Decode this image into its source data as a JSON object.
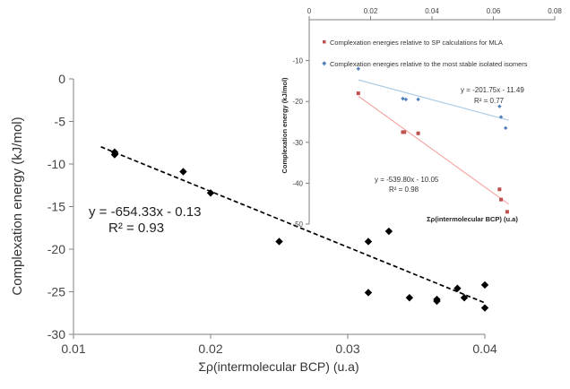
{
  "chart_data": [
    {
      "type": "scatter",
      "xlabel": "Σρ(intermolecular BCP) (u.a)",
      "ylabel": "Complexation energy (kJ/mol)",
      "xlim": [
        0.01,
        0.04
      ],
      "ylim": [
        -30,
        0
      ],
      "xticks": [
        "0.01",
        "0.02",
        "0.03",
        "0.04"
      ],
      "yticks": [
        "0",
        "-5",
        "-10",
        "-15",
        "-20",
        "-25",
        "-30"
      ],
      "grid": false,
      "series": [
        {
          "marker": "diamond",
          "color": "#000000",
          "points": [
            [
              0.013,
              -8.6
            ],
            [
              0.013,
              -8.9
            ],
            [
              0.018,
              -10.9
            ],
            [
              0.02,
              -13.4
            ],
            [
              0.025,
              -19.1
            ],
            [
              0.033,
              -17.9
            ],
            [
              0.0315,
              -19.1
            ],
            [
              0.0315,
              -25.1
            ],
            [
              0.0345,
              -25.7
            ],
            [
              0.0365,
              -25.9
            ],
            [
              0.0365,
              -26.1
            ],
            [
              0.038,
              -24.6
            ],
            [
              0.0385,
              -25.7
            ],
            [
              0.04,
              -24.2
            ],
            [
              0.04,
              -26.9
            ]
          ]
        }
      ],
      "trendline": {
        "style": "dashed",
        "color": "#000000",
        "x_range": [
          0.012,
          0.04
        ],
        "equation": "y = -654.33x - 0.13",
        "r2": "R² = 0.93",
        "slope": -654.33,
        "intercept": -0.13
      }
    },
    {
      "type": "scatter",
      "xlabel": "Σρ(intermolecular BCP) (u.a)",
      "ylabel": "Complexation energy (kJ/mol)",
      "xlim": [
        0,
        0.08
      ],
      "ylim": [
        -50,
        0
      ],
      "x_axis_position": "top",
      "xticks": [
        "0",
        "0.02",
        "0.04",
        "0.06",
        "0.08"
      ],
      "yticks": [
        "-10",
        "-20",
        "-30",
        "-40",
        "-50"
      ],
      "grid": false,
      "legend_position": "top-left",
      "series": [
        {
          "name": "Complexation energies relative to SP calculations for MLA",
          "color": "#c0504d",
          "marker": "square",
          "points": [
            [
              0.016,
              -18
            ],
            [
              0.0305,
              -27.5
            ],
            [
              0.031,
              -27.5
            ],
            [
              0.0355,
              -27.8
            ],
            [
              0.062,
              -41.5
            ],
            [
              0.0625,
              -44
            ],
            [
              0.0645,
              -47
            ]
          ],
          "trendline": {
            "color": "#f4a8a4",
            "x_range": [
              0.016,
              0.065
            ],
            "equation": "y = -539.80x - 10.05",
            "r2": "R² = 0.98",
            "slope": -539.8,
            "intercept": -10.05
          }
        },
        {
          "name": "Complexation energies relative to the most stable isolated isomers",
          "color": "#4f81bd",
          "marker": "diamond",
          "points": [
            [
              0.016,
              -12
            ],
            [
              0.0305,
              -19.3
            ],
            [
              0.0315,
              -19.5
            ],
            [
              0.0355,
              -19.5
            ],
            [
              0.062,
              -21.2
            ],
            [
              0.0625,
              -23.8
            ],
            [
              0.064,
              -26.5
            ]
          ],
          "trendline": {
            "color": "#aecce6",
            "x_range": [
              0.016,
              0.065
            ],
            "equation": "y = -201.75x - 11.49",
            "r2": "R² = 0.77",
            "slope": -201.75,
            "intercept": -11.49
          }
        }
      ]
    }
  ]
}
